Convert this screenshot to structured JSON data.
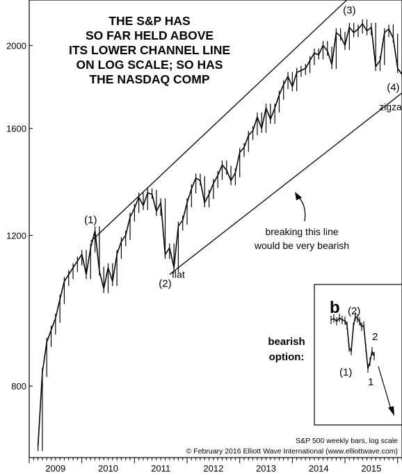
{
  "chart_data": {
    "type": "line",
    "title_lines": [
      "THE S&P HAS",
      "SO FAR HELD ABOVE",
      "ITS LOWER CHANNEL LINE",
      "ON LOG SCALE; SO HAS",
      "THE NASDAQ COMP"
    ],
    "y_scale": "log",
    "ylim": [
      660,
      2260
    ],
    "y_ticks": [
      800,
      1200,
      1600,
      2000
    ],
    "x_ticks": [
      "2009",
      "2010",
      "2011",
      "2012",
      "2013",
      "2014",
      "2015"
    ],
    "xlim": [
      "2009-01",
      "2016-02"
    ],
    "grid": false,
    "series": [
      {
        "name": "",
        "points": [
          [
            "2009-03",
            680
          ],
          [
            "2009-04",
            830
          ],
          [
            "2009-05",
            900
          ],
          [
            "2009-06",
            930
          ],
          [
            "2009-07",
            960
          ],
          [
            "2009-08",
            1010
          ],
          [
            "2009-09",
            1060
          ],
          [
            "2009-10",
            1080
          ],
          [
            "2009-11",
            1100
          ],
          [
            "2009-12",
            1120
          ],
          [
            "2010-01",
            1140
          ],
          [
            "2010-02",
            1080
          ],
          [
            "2010-03",
            1160
          ],
          [
            "2010-04",
            1215
          ],
          [
            "2010-05",
            1090
          ],
          [
            "2010-06",
            1040
          ],
          [
            "2010-07",
            1100
          ],
          [
            "2010-08",
            1060
          ],
          [
            "2010-09",
            1140
          ],
          [
            "2010-10",
            1180
          ],
          [
            "2010-11",
            1200
          ],
          [
            "2010-12",
            1260
          ],
          [
            "2011-01",
            1290
          ],
          [
            "2011-02",
            1330
          ],
          [
            "2011-03",
            1300
          ],
          [
            "2011-04",
            1345
          ],
          [
            "2011-05",
            1340
          ],
          [
            "2011-06",
            1280
          ],
          [
            "2011-07",
            1310
          ],
          [
            "2011-08",
            1140
          ],
          [
            "2011-09",
            1160
          ],
          [
            "2011-10",
            1100
          ],
          [
            "2011-11",
            1230
          ],
          [
            "2011-12",
            1250
          ],
          [
            "2012-01",
            1310
          ],
          [
            "2012-02",
            1360
          ],
          [
            "2012-03",
            1400
          ],
          [
            "2012-04",
            1390
          ],
          [
            "2012-05",
            1310
          ],
          [
            "2012-06",
            1340
          ],
          [
            "2012-07",
            1380
          ],
          [
            "2012-08",
            1410
          ],
          [
            "2012-09",
            1450
          ],
          [
            "2012-10",
            1430
          ],
          [
            "2012-11",
            1390
          ],
          [
            "2012-12",
            1420
          ],
          [
            "2013-01",
            1500
          ],
          [
            "2013-02",
            1520
          ],
          [
            "2013-03",
            1570
          ],
          [
            "2013-04",
            1590
          ],
          [
            "2013-05",
            1650
          ],
          [
            "2013-06",
            1600
          ],
          [
            "2013-07",
            1690
          ],
          [
            "2013-08",
            1640
          ],
          [
            "2013-09",
            1690
          ],
          [
            "2013-10",
            1750
          ],
          [
            "2013-11",
            1800
          ],
          [
            "2013-12",
            1840
          ],
          [
            "2014-01",
            1790
          ],
          [
            "2014-02",
            1860
          ],
          [
            "2014-03",
            1870
          ],
          [
            "2014-04",
            1880
          ],
          [
            "2014-05",
            1920
          ],
          [
            "2014-06",
            1960
          ],
          [
            "2014-07",
            1950
          ],
          [
            "2014-08",
            2000
          ],
          [
            "2014-09",
            1970
          ],
          [
            "2014-10",
            1900
          ],
          [
            "2014-11",
            2070
          ],
          [
            "2014-12",
            2050
          ],
          [
            "2015-01",
            2000
          ],
          [
            "2015-02",
            2100
          ],
          [
            "2015-03",
            2070
          ],
          [
            "2015-04",
            2090
          ],
          [
            "2015-05",
            2120
          ],
          [
            "2015-06",
            2080
          ],
          [
            "2015-07",
            2100
          ],
          [
            "2015-08",
            1890
          ],
          [
            "2015-09",
            1920
          ],
          [
            "2015-10",
            2070
          ],
          [
            "2015-11",
            2090
          ],
          [
            "2015-12",
            2040
          ],
          [
            "2016-01",
            1880
          ],
          [
            "2016-02",
            1850
          ]
        ]
      }
    ],
    "channel_lines": [
      {
        "from": [
          "2010-03",
          1180
        ],
        "to": [
          "2016-02",
          2600
        ]
      },
      {
        "from": [
          "2011-09",
          1080
        ],
        "to": [
          "2016-02",
          1760
        ]
      }
    ],
    "wave_labels": [
      {
        "text": "(1)",
        "at": [
          "2010-03",
          1240
        ]
      },
      {
        "text": "(2)",
        "at": [
          "2011-08",
          1045
        ]
      },
      {
        "text": "flat",
        "at": [
          "2011-11",
          1070
        ]
      },
      {
        "text": "(3)",
        "at": [
          "2015-02",
          2180
        ]
      },
      {
        "text": "(4)",
        "at": [
          "2015-12",
          1770
        ]
      },
      {
        "text": "zigzag",
        "at": [
          "2015-12",
          1680
        ]
      }
    ],
    "annotation_text": [
      "breaking this line",
      "would be very bearish"
    ],
    "inset": {
      "title": "b",
      "labels": [
        "(2)",
        "(1)",
        "2",
        "1"
      ],
      "side_text": [
        "bearish",
        "option:"
      ]
    },
    "credit_lines": [
      "S&P 500 weekly bars, log scale",
      "© February 2016 Elliott Wave International (www.elliottwave.com)"
    ]
  }
}
